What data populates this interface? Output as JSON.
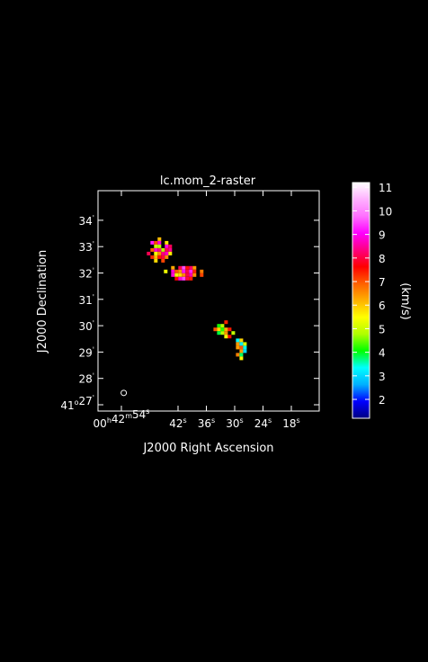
{
  "chart_data": {
    "type": "heatmap",
    "title": "lc.mom_2-raster",
    "xlabel": "J2000 Right Ascension",
    "ylabel": "J2000 Declination",
    "x_ticks": [
      {
        "h": "00",
        "hs": "h",
        "m": "42",
        "ms": "m",
        "s": "54",
        "ss": "s"
      },
      {
        "s": "42",
        "ss": "s"
      },
      {
        "s": "36",
        "ss": "s"
      },
      {
        "s": "30",
        "ss": "s"
      },
      {
        "s": "24",
        "ss": "s"
      },
      {
        "s": "18",
        "ss": "s"
      }
    ],
    "y_ticks": [
      {
        "deg": "41",
        "dsym": "o",
        "min": "27",
        "msym": "'"
      },
      {
        "min": "28",
        "msym": "'"
      },
      {
        "min": "29",
        "msym": "'"
      },
      {
        "min": "30",
        "msym": "'"
      },
      {
        "min": "31",
        "msym": "'"
      },
      {
        "min": "32",
        "msym": "'"
      },
      {
        "min": "33",
        "msym": "'"
      },
      {
        "min": "34",
        "msym": "'"
      }
    ],
    "colorbar": {
      "label": "(km/s)",
      "ticks": [
        "2",
        "3",
        "4",
        "5",
        "6",
        "7",
        "8",
        "9",
        "10",
        "11"
      ],
      "min": 1.2,
      "max": 11.2,
      "stops": [
        "#000080",
        "#0000ff",
        "#00b0ff",
        "#00ffff",
        "#00ff00",
        "#b0ff00",
        "#ffff00",
        "#ffb000",
        "#ff6000",
        "#ff0000",
        "#ff0080",
        "#ff00ff",
        "#ff70ff",
        "#ffb0ff",
        "#ffffff"
      ]
    },
    "clumps": [
      {
        "ra_s": 46.2,
        "dec_m": 32.9,
        "ra_half": 2.4,
        "dec_half": 0.45,
        "mean": 7.0
      },
      {
        "ra_s": 41.0,
        "dec_m": 32.1,
        "ra_half": 4.0,
        "dec_half": 0.3,
        "mean": 7.6
      },
      {
        "ra_s": 32.5,
        "dec_m": 29.9,
        "ra_half": 2.0,
        "dec_half": 0.3,
        "mean": 5.6
      },
      {
        "ra_s": 29.0,
        "dec_m": 29.2,
        "ra_half": 1.5,
        "dec_half": 0.45,
        "mean": 5.2
      }
    ],
    "beam": {
      "ra_s": 53.5,
      "dec_m": 27.45
    }
  },
  "colors": {
    "background": "#000000",
    "axes": "#ffffff"
  }
}
